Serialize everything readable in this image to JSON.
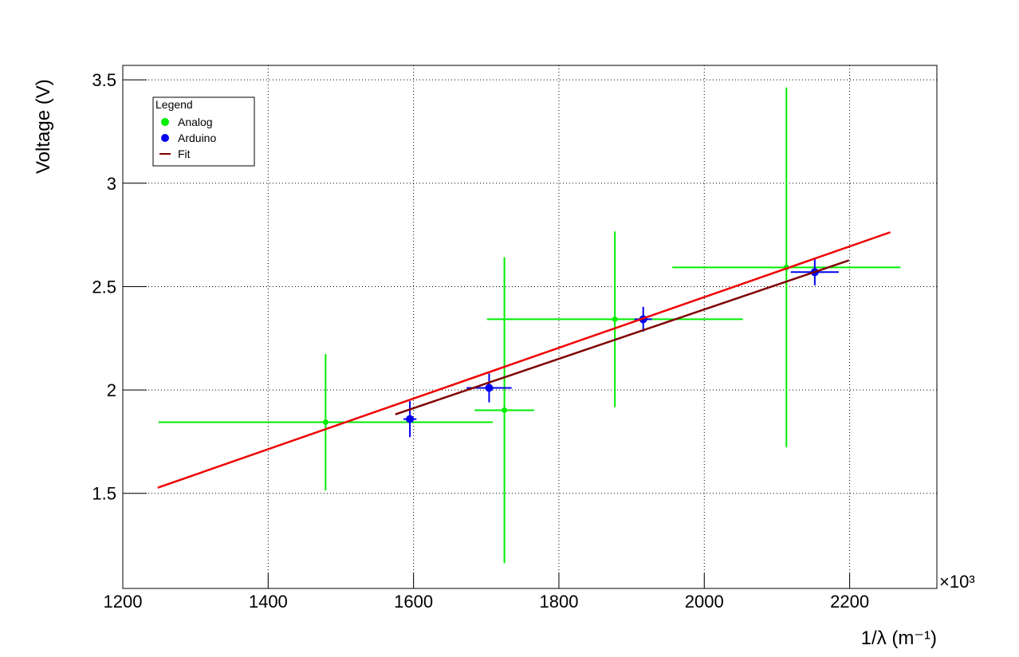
{
  "chart_data": {
    "type": "scatter",
    "x_label": "1/λ (m⁻¹)",
    "y_label": "Voltage (V)",
    "x_multiplier": "×10³",
    "xlim": [
      1200,
      2320
    ],
    "ylim": [
      1.04,
      3.57
    ],
    "xticks": [
      1200,
      1400,
      1600,
      1800,
      2000,
      2200
    ],
    "yticks": [
      1.5,
      2,
      2.5,
      3,
      3.5
    ],
    "grid": true,
    "legend": "upper left",
    "legend_title": "Legend",
    "series": [
      {
        "name": "Analog",
        "color": "#00ee00",
        "marker": "star",
        "x": [
          1479,
          1725,
          1877,
          2113
        ],
        "values": [
          1.844,
          1.902,
          2.342,
          2.593
        ],
        "x_err": [
          230,
          41,
          176,
          157
        ],
        "y_err": [
          0.33,
          0.74,
          0.425,
          0.87
        ]
      },
      {
        "name": "Arduino",
        "color": "#0000ee",
        "marker": "circle",
        "x": [
          1595,
          1704,
          1916,
          2152
        ],
        "values": [
          1.859,
          2.01,
          2.342,
          2.57
        ],
        "x_err": [
          9,
          31,
          12,
          33
        ],
        "y_err": [
          0.087,
          0.07,
          0.06,
          0.064
        ]
      },
      {
        "color": "#ee0000",
        "marker": "line",
        "x": [
          1248,
          2256
        ],
        "values": [
          1.527,
          2.763
        ]
      },
      {
        "name": "Fit",
        "color": "#800000",
        "marker": "line",
        "x": [
          1575,
          2199
        ],
        "values": [
          1.882,
          2.627
        ]
      }
    ]
  }
}
